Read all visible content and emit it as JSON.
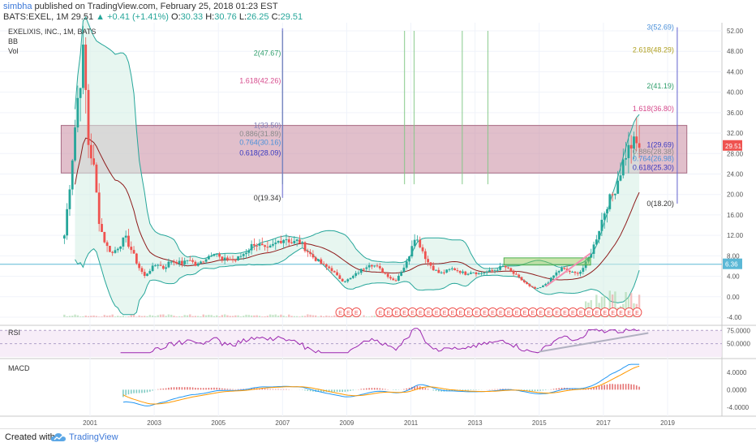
{
  "header": {
    "user": "simbha",
    "published_text": "published on TradingView.com, February 25, 2018 01:23 EST",
    "symbol": "BATS:EXEL, 1M",
    "last": "29.51",
    "change": "+0.41 (+1.41%)",
    "o_label": "O:",
    "o": "30.33",
    "h_label": "H:",
    "h": "30.76",
    "l_label": "L:",
    "l": "26.25",
    "c_label": "C:",
    "c": "29.51"
  },
  "chart_title": "EXELIXIS, INC., 1M, BATS",
  "indicator_labels": {
    "bb": "BB",
    "vol": "Vol"
  },
  "footer": {
    "created_with": "Created with",
    "brand": "TradingView"
  },
  "colors": {
    "up": "#26a69a",
    "down": "#ef5350",
    "bb_fill": "#d4eee3",
    "bb_line": "#26a69a",
    "basis": "#8e1b1b",
    "zone": "#c98ba0",
    "rsi": "#9c27b0",
    "macd": "#2196f3",
    "signal": "#ff9800"
  },
  "chart_data": [
    {
      "type": "candlestick",
      "title": "EXELIXIS, INC., 1M, BATS",
      "ylim": [
        -4,
        53
      ],
      "y_ticks": [
        "52.00",
        "48.00",
        "44.00",
        "40.00",
        "36.00",
        "32.00",
        "28.00",
        "24.00",
        "20.00",
        "16.00",
        "12.00",
        "8.00",
        "4.00",
        "0.00",
        "-4.00"
      ],
      "x_ticks": [
        "2001",
        "2003",
        "2005",
        "2007",
        "2009",
        "2011",
        "2013",
        "2015",
        "2017",
        "2019"
      ],
      "last_price_label": "29.51",
      "hline_label": "6.36",
      "hline_value": 6.36,
      "resistance_zone": [
        24.2,
        33.5
      ],
      "support_box": [
        6.2,
        7.6
      ],
      "close_path": [
        [
          2000.2,
          12
        ],
        [
          2000.4,
          24
        ],
        [
          2000.6,
          38
        ],
        [
          2000.8,
          48
        ],
        [
          2000.95,
          30
        ],
        [
          2001.1,
          26
        ],
        [
          2001.3,
          14
        ],
        [
          2001.5,
          10
        ],
        [
          2001.7,
          8.5
        ],
        [
          2001.9,
          10
        ],
        [
          2002.1,
          11.5
        ],
        [
          2002.3,
          9
        ],
        [
          2002.5,
          6
        ],
        [
          2002.7,
          4
        ],
        [
          2002.9,
          5.5
        ],
        [
          2003.1,
          6.5
        ],
        [
          2003.3,
          5.5
        ],
        [
          2003.5,
          7
        ],
        [
          2003.7,
          6.8
        ],
        [
          2003.9,
          6.5
        ],
        [
          2004.1,
          7.5
        ],
        [
          2004.3,
          6
        ],
        [
          2004.5,
          7
        ],
        [
          2004.7,
          8
        ],
        [
          2004.9,
          9
        ],
        [
          2005.1,
          7
        ],
        [
          2005.3,
          7.5
        ],
        [
          2005.5,
          7
        ],
        [
          2005.7,
          8
        ],
        [
          2005.9,
          9
        ],
        [
          2006.1,
          10.5
        ],
        [
          2006.3,
          10
        ],
        [
          2006.5,
          9
        ],
        [
          2006.7,
          10
        ],
        [
          2006.9,
          11
        ],
        [
          2007.1,
          11.5
        ],
        [
          2007.3,
          10.5
        ],
        [
          2007.5,
          11
        ],
        [
          2007.7,
          9.5
        ],
        [
          2007.9,
          8
        ],
        [
          2008.1,
          7
        ],
        [
          2008.3,
          6
        ],
        [
          2008.5,
          5.5
        ],
        [
          2008.7,
          4
        ],
        [
          2008.9,
          3
        ],
        [
          2009.1,
          3.5
        ],
        [
          2009.3,
          4.5
        ],
        [
          2009.5,
          5.5
        ],
        [
          2009.7,
          6.5
        ],
        [
          2009.9,
          6
        ],
        [
          2010.1,
          5
        ],
        [
          2010.3,
          4
        ],
        [
          2010.5,
          3
        ],
        [
          2010.7,
          5
        ],
        [
          2010.9,
          7
        ],
        [
          2011.1,
          12
        ],
        [
          2011.3,
          10
        ],
        [
          2011.5,
          7
        ],
        [
          2011.7,
          5.5
        ],
        [
          2011.9,
          4.5
        ],
        [
          2012.1,
          5
        ],
        [
          2012.3,
          5.5
        ],
        [
          2012.5,
          5
        ],
        [
          2012.7,
          4.5
        ],
        [
          2012.9,
          5
        ],
        [
          2013.1,
          4.5
        ],
        [
          2013.3,
          4.8
        ],
        [
          2013.5,
          5
        ],
        [
          2013.7,
          5.5
        ],
        [
          2013.9,
          6
        ],
        [
          2014.1,
          5
        ],
        [
          2014.3,
          4
        ],
        [
          2014.5,
          3
        ],
        [
          2014.7,
          2
        ],
        [
          2014.9,
          1.5
        ],
        [
          2015.1,
          2
        ],
        [
          2015.3,
          3
        ],
        [
          2015.5,
          4.5
        ],
        [
          2015.7,
          5.5
        ],
        [
          2015.9,
          5
        ],
        [
          2016.1,
          4.5
        ],
        [
          2016.3,
          5
        ],
        [
          2016.5,
          7
        ],
        [
          2016.7,
          10
        ],
        [
          2016.9,
          14
        ],
        [
          2017.1,
          18
        ],
        [
          2017.3,
          20
        ],
        [
          2017.5,
          24
        ],
        [
          2017.7,
          28
        ],
        [
          2017.9,
          30
        ],
        [
          2018.1,
          29.51
        ]
      ],
      "fib_left": [
        {
          "label": "2(47.67)",
          "value": 47.67,
          "color": "#2e9e6b"
        },
        {
          "label": "1.618(42.26)",
          "value": 42.26,
          "color": "#d64a8c"
        },
        {
          "label": "1(33.50)",
          "value": 33.5,
          "color": "#7a7ab5"
        },
        {
          "label": "0.886(31.89)",
          "value": 31.89,
          "color": "#8a8a8a"
        },
        {
          "label": "0.764(30.16)",
          "value": 30.16,
          "color": "#4a90d9"
        },
        {
          "label": "0.618(28.09)",
          "value": 28.09,
          "color": "#3a3ac0"
        },
        {
          "label": "0(19.34)",
          "value": 19.34,
          "color": "#333333"
        }
      ],
      "fib_right": [
        {
          "label": "3(52.69)",
          "value": 52.69,
          "color": "#4a90d9"
        },
        {
          "label": "2.618(48.29)",
          "value": 48.29,
          "color": "#b0a020"
        },
        {
          "label": "2(41.19)",
          "value": 41.19,
          "color": "#2e9e6b"
        },
        {
          "label": "1.618(36.80)",
          "value": 36.8,
          "color": "#d64a8c"
        },
        {
          "label": "1(29.69)",
          "value": 29.69,
          "color": "#3a3ac0"
        },
        {
          "label": "0.886(28.38)",
          "value": 28.38,
          "color": "#8a8a8a"
        },
        {
          "label": "0.764(26.98)",
          "value": 26.98,
          "color": "#4a90d9"
        },
        {
          "label": "0.618(25.30)",
          "value": 25.3,
          "color": "#3a3ac0"
        },
        {
          "label": "0(18.20)",
          "value": 18.2,
          "color": "#333333"
        }
      ],
      "earnings_marker": "E"
    },
    {
      "type": "line",
      "title": "RSI",
      "y_ticks": [
        "75.0000",
        "50.0000"
      ],
      "ylim": [
        25,
        80
      ]
    },
    {
      "type": "line",
      "title": "MACD",
      "y_ticks": [
        "4.0000",
        "0.0000",
        "-4.0000"
      ],
      "ylim": [
        -5.5,
        6
      ]
    }
  ]
}
